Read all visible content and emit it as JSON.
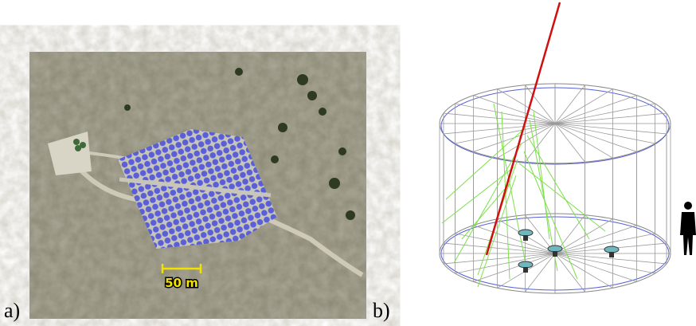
{
  "panels": [
    {
      "label": "a)"
    },
    {
      "label": "b)"
    }
  ],
  "scale_bar": {
    "label": "50 m"
  }
}
